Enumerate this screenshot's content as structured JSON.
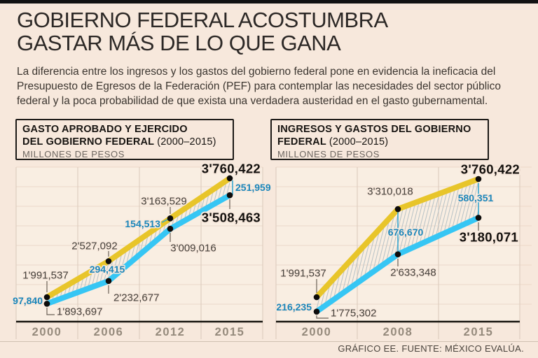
{
  "page": {
    "title_line1": "GOBIERNO FEDERAL ACOSTUMBRA",
    "title_line2": "GASTAR MÁS DE LO QUE GANA",
    "intro": "La diferencia entre los ingresos y los gastos del gobierno federal pone en evidencia la ineficacia del Presupuesto de Egresos de la Federación (PEF) para contemplar las necesidades del sector público federal y la poca probabilidad de que exista una verdadera austeridad en el gasto gubernamental.",
    "footer": "GRÁFICO EE. FUENTE: MÉXICO EVALÚA."
  },
  "colors": {
    "background": "#f7e8dc",
    "plot_background": "#f9eee2",
    "yellow": "#e8c52a",
    "cyan": "#36c6f4",
    "blue_label": "#1a86ba",
    "grid_horizontal": "#ecd8c9",
    "grid_vertical": "#d9c8ba",
    "axis_black": "#17140f",
    "hatch_line": "#b9c3c6",
    "leader_gray": "#6b6157",
    "leader_blue": "#2ba2cf",
    "dot_black": "#0e0c0b",
    "top_bar": "#121212"
  },
  "chart_data": [
    {
      "type": "line",
      "header_line1": "GASTO APROBADO Y EJERCIDO",
      "header_line2": "DEL GOBIERNO FEDERAL",
      "header_period": "(2000–2015)",
      "units": "MILLONES DE PESOS",
      "categories": [
        "2000",
        "2006",
        "2012",
        "2015"
      ],
      "ylim": [
        1775302,
        3760422
      ],
      "series": [
        {
          "name": "EJERCIDO",
          "color": "#e8c52a",
          "values": [
            1991537,
            2527092,
            3163529,
            3760422
          ],
          "labels": [
            "1'991,537",
            "2'527,092",
            "3'163,529",
            "3'760,422"
          ]
        },
        {
          "name": "APROBADO",
          "color": "#36c6f4",
          "values": [
            1893697,
            2232677,
            3009016,
            3508463
          ],
          "labels": [
            "1'893,697",
            "2'232,677",
            "3'009,016",
            "3'508,463"
          ]
        }
      ],
      "difference": {
        "name": "DIFERENCIA",
        "values": [
          97840,
          294415,
          154513,
          251959
        ],
        "labels": [
          "97,840",
          "294,415",
          "154,513",
          "251,959"
        ]
      }
    },
    {
      "type": "line",
      "header_line1": "INGRESOS Y GASTOS DEL GOBIERNO",
      "header_line2": "FEDERAL",
      "header_period": "(2000–2015)",
      "units": "MILLONES DE PESOS",
      "categories": [
        "2000",
        "2008",
        "2015"
      ],
      "ylim": [
        1775302,
        3760422
      ],
      "series": [
        {
          "name": "GASTO",
          "color": "#e8c52a",
          "values": [
            1991537,
            3310018,
            3760422
          ],
          "labels": [
            "1'991,537",
            "3'310,018",
            "3'760,422"
          ]
        },
        {
          "name": "INGRESO",
          "color": "#36c6f4",
          "values": [
            1775302,
            2633348,
            3180071
          ],
          "labels": [
            "1'775,302",
            "2'633,348",
            "3'180,071"
          ]
        }
      ],
      "difference": {
        "name": "DIFERENCIA",
        "values": [
          216235,
          676670,
          580351
        ],
        "labels": [
          "216,235",
          "676,670",
          "580,351"
        ]
      }
    }
  ]
}
